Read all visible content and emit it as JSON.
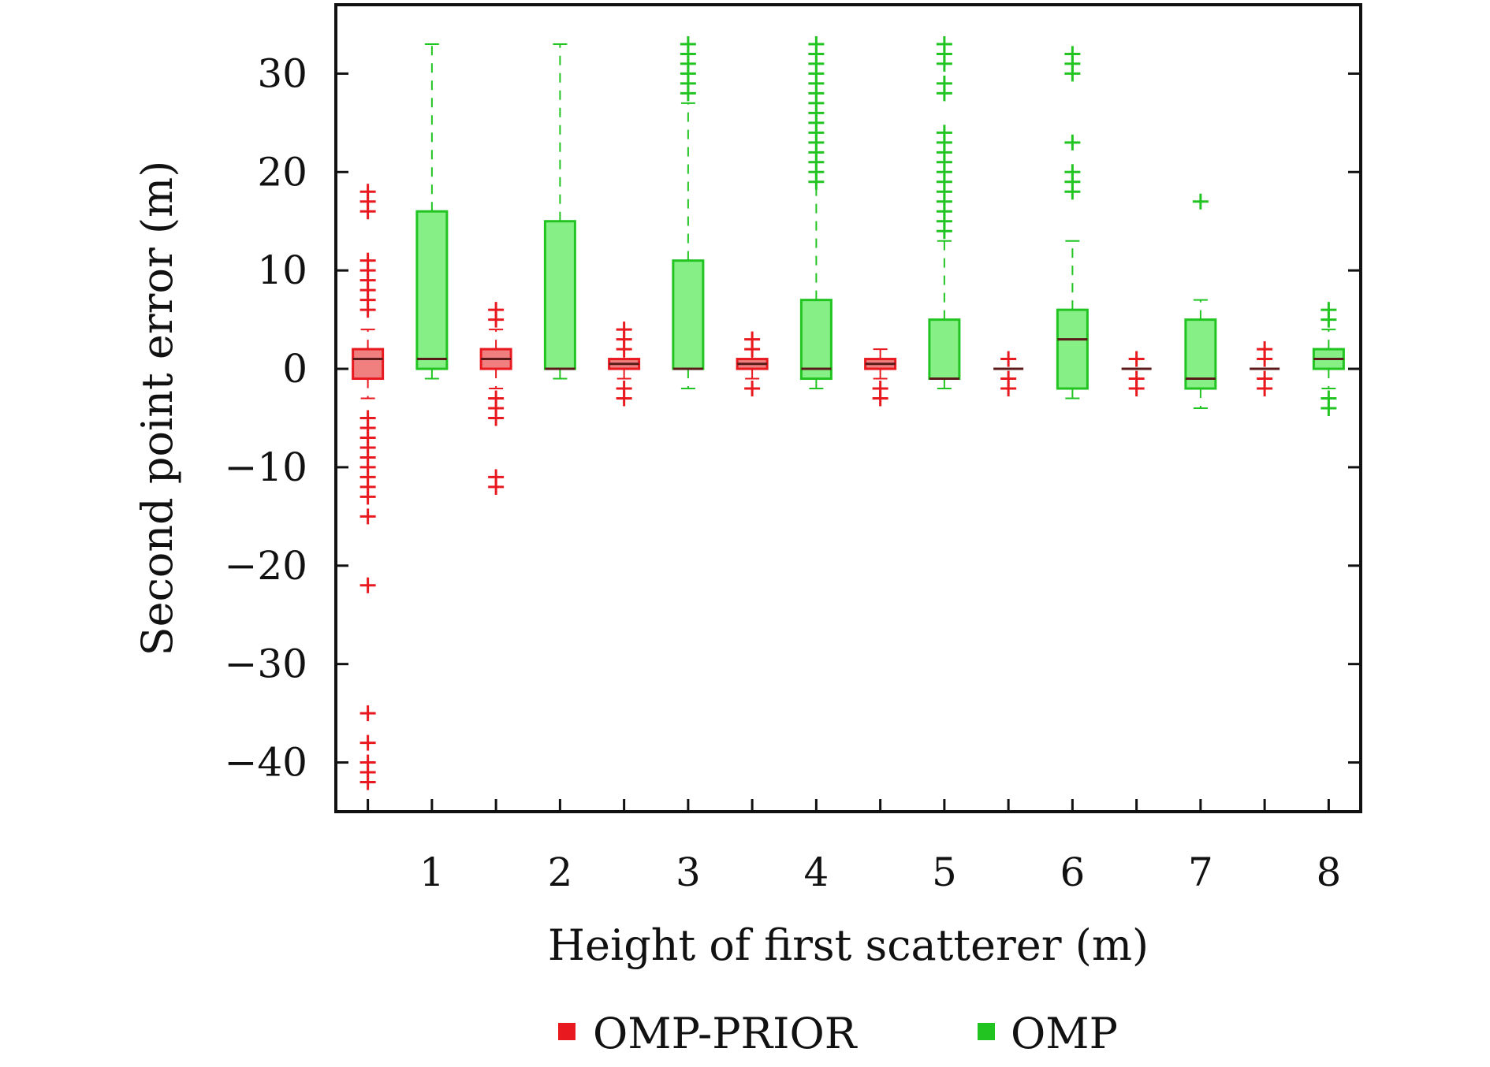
{
  "chart_data": {
    "type": "boxplot",
    "xlabel": "Height of first scatterer (m)",
    "ylabel": "Second point error (m)",
    "ylim": [
      -45,
      37
    ],
    "y_ticks": [
      -40,
      -30,
      -20,
      -10,
      0,
      10,
      20,
      30
    ],
    "y_tick_labels": [
      "−40",
      "−30",
      "−20",
      "−10",
      "0",
      "10",
      "20",
      "30"
    ],
    "categories": [
      "1",
      "2",
      "3",
      "4",
      "5",
      "6",
      "7",
      "8"
    ],
    "grid": false,
    "legend_placement": "bottom-center",
    "series": [
      {
        "name": "OMP-PRIOR",
        "color": "#e8191f",
        "fill": "#f07f80",
        "boxes": [
          {
            "q1": -1,
            "median": 1,
            "q3": 2,
            "whisker_low": -3,
            "whisker_high": 4,
            "outliers": [
              18,
              17,
              16,
              11,
              10,
              9,
              8,
              7,
              6,
              -5,
              -6,
              -7,
              -8,
              -9,
              -10,
              -11,
              -12,
              -13,
              -15,
              -22,
              -35,
              -38,
              -40,
              -41,
              -42
            ]
          },
          {
            "q1": 0,
            "median": 1,
            "q3": 2,
            "whisker_low": -2,
            "whisker_high": 4,
            "outliers": [
              6,
              5,
              -3,
              -4,
              -5,
              -11,
              -12
            ]
          },
          {
            "q1": 0,
            "median": 0.5,
            "q3": 1,
            "whisker_low": -1,
            "whisker_high": 2,
            "outliers": [
              4,
              3,
              2,
              -2,
              -3
            ]
          },
          {
            "q1": 0,
            "median": 0.5,
            "q3": 1,
            "whisker_low": -1,
            "whisker_high": 2,
            "outliers": [
              3,
              2,
              -2
            ]
          },
          {
            "q1": 0,
            "median": 0.5,
            "q3": 1,
            "whisker_low": -1,
            "whisker_high": 2,
            "outliers": [
              -2,
              -3
            ]
          },
          {
            "q1": 0,
            "median": 0,
            "q3": 0,
            "whisker_low": 0,
            "whisker_high": 0,
            "outliers": [
              1,
              -1,
              -2
            ]
          },
          {
            "q1": 0,
            "median": 0,
            "q3": 0,
            "whisker_low": 0,
            "whisker_high": 0,
            "outliers": [
              1,
              -1,
              -2
            ]
          },
          {
            "q1": 0,
            "median": 0,
            "q3": 0,
            "whisker_low": 0,
            "whisker_high": 0,
            "outliers": [
              2,
              1,
              -1,
              -2
            ]
          }
        ]
      },
      {
        "name": "OMP",
        "color": "#22c422",
        "fill": "#86f086",
        "boxes": [
          {
            "q1": 0,
            "median": 1,
            "q3": 16,
            "whisker_low": -1,
            "whisker_high": 33,
            "outliers": []
          },
          {
            "q1": 0,
            "median": 0,
            "q3": 15,
            "whisker_low": -1,
            "whisker_high": 33,
            "outliers": []
          },
          {
            "q1": 0,
            "median": 0,
            "q3": 11,
            "whisker_low": -2,
            "whisker_high": 27,
            "outliers": [
              33,
              32,
              31,
              30,
              29,
              28
            ]
          },
          {
            "q1": -1,
            "median": 0,
            "q3": 7,
            "whisker_low": -2,
            "whisker_high": 19,
            "outliers": [
              33,
              32,
              31,
              30,
              29,
              28,
              27,
              26,
              25,
              24,
              23,
              22,
              21,
              20,
              19
            ]
          },
          {
            "q1": -1,
            "median": -1,
            "q3": 5,
            "whisker_low": -2,
            "whisker_high": 13,
            "outliers": [
              33,
              32,
              31,
              29,
              28,
              24,
              23,
              22,
              21,
              20,
              19,
              18,
              17,
              16,
              15,
              14
            ]
          },
          {
            "q1": -2,
            "median": 3,
            "q3": 6,
            "whisker_low": -3,
            "whisker_high": 13,
            "outliers": [
              32,
              31,
              30,
              23,
              20,
              19,
              18
            ]
          },
          {
            "q1": -2,
            "median": -1,
            "q3": 5,
            "whisker_low": -4,
            "whisker_high": 7,
            "outliers": [
              17
            ]
          },
          {
            "q1": 0,
            "median": 1,
            "q3": 2,
            "whisker_low": -2,
            "whisker_high": 4,
            "outliers": [
              6,
              5,
              -3,
              -4
            ]
          }
        ]
      }
    ]
  }
}
